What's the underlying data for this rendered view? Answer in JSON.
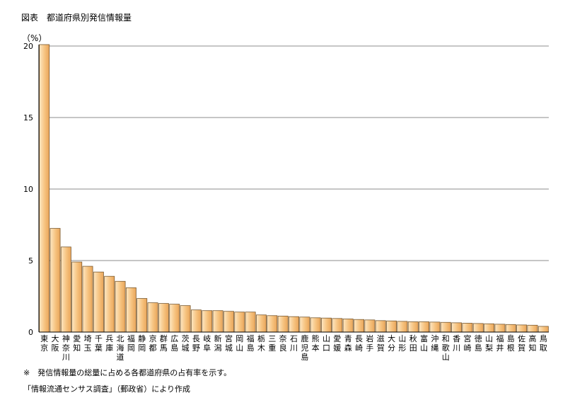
{
  "figure": {
    "title": "図表　都道府県別発信情報量",
    "unit": "（%）",
    "note": "※　発信情報量の総量に占める各都道府県の占有率を示す。",
    "source": "「情報流通センサス調査」（郵政省）により作成"
  },
  "chart_data": {
    "type": "bar",
    "title": "都道府県別発信情報量",
    "ylabel": "（%）",
    "xlabel": "",
    "ylim": [
      0,
      20
    ],
    "yticks": [
      0,
      5,
      10,
      15,
      20
    ],
    "grid": true,
    "bar_color": "#f6c27e",
    "categories": [
      "東京",
      "大阪",
      "神奈川",
      "愛知",
      "埼玉",
      "千葉",
      "兵庫",
      "北海道",
      "福岡",
      "静岡",
      "京都",
      "群馬",
      "広島",
      "茨城",
      "長野",
      "岐阜",
      "新潟",
      "宮城",
      "岡山",
      "福島",
      "栃木",
      "三重",
      "奈良",
      "石川",
      "鹿児島",
      "熊本",
      "山口",
      "愛媛",
      "青森",
      "長崎",
      "岩手",
      "滋賀",
      "大分",
      "山形",
      "秋田",
      "富山",
      "沖縄",
      "和歌山",
      "香川",
      "宮崎",
      "徳島",
      "山梨",
      "福井",
      "島根",
      "佐賀",
      "高知",
      "鳥取"
    ],
    "values": [
      20.1,
      7.25,
      5.95,
      4.9,
      4.6,
      4.2,
      3.9,
      3.55,
      3.1,
      2.35,
      2.05,
      2.0,
      1.95,
      1.85,
      1.55,
      1.5,
      1.5,
      1.45,
      1.4,
      1.4,
      1.2,
      1.15,
      1.12,
      1.08,
      1.05,
      1.0,
      0.98,
      0.95,
      0.92,
      0.88,
      0.85,
      0.8,
      0.78,
      0.75,
      0.72,
      0.72,
      0.7,
      0.68,
      0.65,
      0.62,
      0.6,
      0.58,
      0.55,
      0.53,
      0.5,
      0.48,
      0.4
    ]
  }
}
